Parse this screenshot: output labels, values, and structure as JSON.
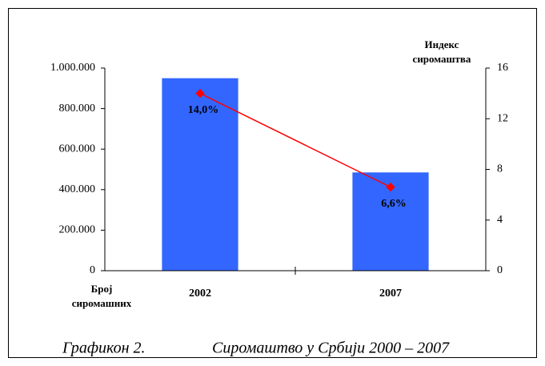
{
  "chart_data": {
    "type": "bar",
    "caption": [
      "Графикон 2.",
      "Сиромаштво у Србији 2000 – 2007"
    ],
    "y_label": [
      "Број",
      "сиромашних"
    ],
    "y2_label": [
      "Индекс",
      "сиромаштва"
    ],
    "categories": [
      "2002",
      "2007"
    ],
    "ylim": [
      0,
      1000000
    ],
    "yticks": [
      0,
      {
        "value": 200000,
        "label": "200.000"
      },
      {
        "value": 400000,
        "label": "400.000"
      },
      {
        "value": 600000,
        "label": "600.000"
      },
      {
        "value": 800000,
        "label": "800.000"
      },
      {
        "value": 1000000,
        "label": "1.000.000"
      }
    ],
    "y2lim": [
      0,
      16
    ],
    "y2ticks": [
      0,
      4,
      8,
      12,
      16
    ],
    "series": [
      {
        "type": "bar",
        "color": "#3366ff",
        "values": [
          950000,
          485000
        ]
      },
      {
        "type": "line",
        "axis": "y2",
        "color": "#ff0000",
        "values": [
          14.0,
          6.6
        ],
        "value_labels": [
          "14,0%",
          "6,6%"
        ]
      }
    ]
  }
}
